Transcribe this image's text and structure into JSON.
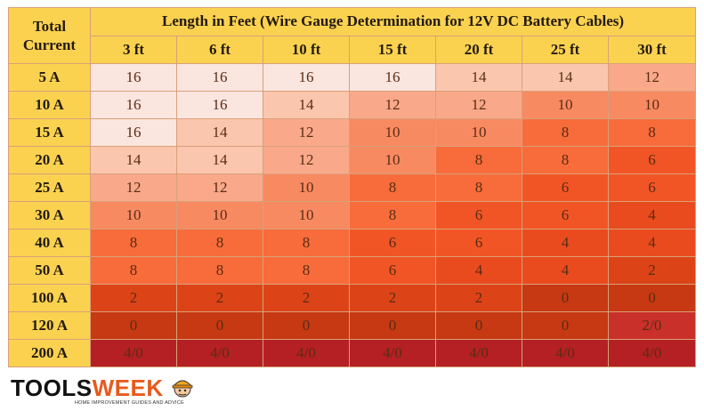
{
  "table": {
    "corner_line1": "Total",
    "corner_line2": "Current",
    "title": "Length in Feet (Wire Gauge Determination for 12V DC Battery Cables)",
    "lengths": [
      "3 ft",
      "6 ft",
      "10 ft",
      "15 ft",
      "20 ft",
      "25 ft",
      "30 ft"
    ],
    "rows": [
      {
        "current": "5 A",
        "cells": [
          "16",
          "16",
          "16",
          "16",
          "14",
          "14",
          "12"
        ],
        "colors": [
          "#fbe5df",
          "#fbe5df",
          "#fbe5df",
          "#fbe5df",
          "#fbc6ae",
          "#fbc6ae",
          "#f9a98a"
        ]
      },
      {
        "current": "10 A",
        "cells": [
          "16",
          "16",
          "14",
          "12",
          "12",
          "10",
          "10"
        ],
        "colors": [
          "#fbe5df",
          "#fbe5df",
          "#fbc6ae",
          "#f9a98a",
          "#f9a98a",
          "#f88a62",
          "#f88a62"
        ]
      },
      {
        "current": "15 A",
        "cells": [
          "16",
          "14",
          "12",
          "10",
          "10",
          "8",
          "8"
        ],
        "colors": [
          "#fbe5df",
          "#fbc6ae",
          "#f9a98a",
          "#f88a62",
          "#f88a62",
          "#f76c3a",
          "#f76c3a"
        ]
      },
      {
        "current": "20 A",
        "cells": [
          "14",
          "14",
          "12",
          "10",
          "8",
          "8",
          "6"
        ],
        "colors": [
          "#fbc6ae",
          "#fbc6ae",
          "#f9a98a",
          "#f88a62",
          "#f76c3a",
          "#f76c3a",
          "#f25525"
        ]
      },
      {
        "current": "25 A",
        "cells": [
          "12",
          "12",
          "10",
          "8",
          "8",
          "6",
          "6"
        ],
        "colors": [
          "#f9a98a",
          "#f9a98a",
          "#f88a62",
          "#f76c3a",
          "#f76c3a",
          "#f25525",
          "#f25525"
        ]
      },
      {
        "current": "30 A",
        "cells": [
          "10",
          "10",
          "10",
          "8",
          "6",
          "6",
          "4"
        ],
        "colors": [
          "#f88a62",
          "#f88a62",
          "#f88a62",
          "#f76c3a",
          "#f25525",
          "#f25525",
          "#e94b1e"
        ]
      },
      {
        "current": "40 A",
        "cells": [
          "8",
          "8",
          "8",
          "6",
          "6",
          "4",
          "4"
        ],
        "colors": [
          "#f76c3a",
          "#f76c3a",
          "#f76c3a",
          "#f25525",
          "#f25525",
          "#e94b1e",
          "#e94b1e"
        ]
      },
      {
        "current": "50 A",
        "cells": [
          "8",
          "8",
          "8",
          "6",
          "4",
          "4",
          "2"
        ],
        "colors": [
          "#f76c3a",
          "#f76c3a",
          "#f76c3a",
          "#f25525",
          "#e94b1e",
          "#e94b1e",
          "#dc4418"
        ]
      },
      {
        "current": "100 A",
        "cells": [
          "2",
          "2",
          "2",
          "2",
          "2",
          "0",
          "0"
        ],
        "colors": [
          "#dc4418",
          "#dc4418",
          "#dc4418",
          "#dc4418",
          "#dc4418",
          "#c63912",
          "#c63912"
        ]
      },
      {
        "current": "120 A",
        "cells": [
          "0",
          "0",
          "0",
          "0",
          "0",
          "0",
          "2/0"
        ],
        "colors": [
          "#c63912",
          "#c63912",
          "#c63912",
          "#c63912",
          "#c63912",
          "#c63912",
          "#c9302a"
        ]
      },
      {
        "current": "200 A",
        "cells": [
          "4/0",
          "4/0",
          "4/0",
          "4/0",
          "4/0",
          "4/0",
          "4/0"
        ],
        "colors": [
          "#b52024",
          "#b52024",
          "#b52024",
          "#b52024",
          "#b52024",
          "#b52024",
          "#b52024"
        ]
      }
    ]
  },
  "logo": {
    "part1": "TOOLS",
    "part2": "WEEK",
    "tagline": "HOME IMPROVEMENT GUIDES AND ADVICE"
  },
  "colors": {
    "header_bg": "#fbd24f",
    "brand_orange": "#e85a1c"
  },
  "icons": {
    "mascot": "worker-mascot-icon"
  }
}
